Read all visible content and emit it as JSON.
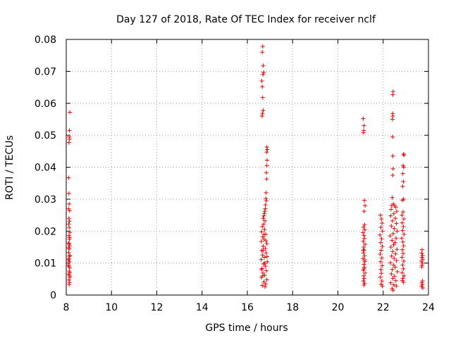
{
  "chart_data": {
    "type": "scatter",
    "title": "Day 127 of 2018, Rate Of TEC Index for receiver nclf",
    "xlabel": "GPS time / hours",
    "ylabel": "ROTI / TECUs",
    "xlim": [
      8,
      24
    ],
    "ylim": [
      0,
      0.08
    ],
    "grid": true,
    "marker": "+",
    "marker_color": "#ff0000",
    "x_ticks": [
      {
        "value": 8,
        "label": "8"
      },
      {
        "value": 10,
        "label": "10"
      },
      {
        "value": 12,
        "label": "12"
      },
      {
        "value": 14,
        "label": "14"
      },
      {
        "value": 16,
        "label": "16"
      },
      {
        "value": 18,
        "label": "18"
      },
      {
        "value": 20,
        "label": "20"
      },
      {
        "value": 22,
        "label": "22"
      },
      {
        "value": 24,
        "label": "24"
      }
    ],
    "y_ticks": [
      {
        "value": 0,
        "label": "0"
      },
      {
        "value": 0.01,
        "label": "0.01"
      },
      {
        "value": 0.02,
        "label": "0.02"
      },
      {
        "value": 0.03,
        "label": "0.03"
      },
      {
        "value": 0.04,
        "label": "0.04"
      },
      {
        "value": 0.05,
        "label": "0.05"
      },
      {
        "value": 0.06,
        "label": "0.06"
      },
      {
        "value": 0.07,
        "label": "0.07"
      },
      {
        "value": 0.08,
        "label": "0.08"
      }
    ],
    "series": [
      {
        "name": "ROTI",
        "points": [
          [
            8.16,
            0.0572
          ],
          [
            8.14,
            0.0515
          ],
          [
            8.13,
            0.0495
          ],
          [
            8.15,
            0.0488
          ],
          [
            8.12,
            0.0477
          ],
          [
            8.11,
            0.0367
          ],
          [
            8.12,
            0.0318
          ],
          [
            8.13,
            0.0285
          ],
          [
            8.1,
            0.027
          ],
          [
            8.15,
            0.0264
          ],
          [
            8.12,
            0.024
          ],
          [
            8.14,
            0.0231
          ],
          [
            8.11,
            0.0222
          ],
          [
            8.13,
            0.0211
          ],
          [
            8.16,
            0.0196
          ],
          [
            8.12,
            0.0186
          ],
          [
            8.14,
            0.0175
          ],
          [
            8.1,
            0.0163
          ],
          [
            8.15,
            0.0154
          ],
          [
            8.13,
            0.0144
          ],
          [
            8.11,
            0.0133
          ],
          [
            8.16,
            0.0124
          ],
          [
            8.12,
            0.0113
          ],
          [
            8.14,
            0.0104
          ],
          [
            8.1,
            0.0094
          ],
          [
            8.15,
            0.0085
          ],
          [
            8.13,
            0.0075
          ],
          [
            8.11,
            0.0065
          ],
          [
            8.16,
            0.0056
          ],
          [
            8.12,
            0.0047
          ],
          [
            8.14,
            0.0039
          ],
          [
            8.13,
            0.0033
          ],
          [
            8.15,
            0.018
          ],
          [
            8.11,
            0.0148
          ],
          [
            8.14,
            0.0121
          ],
          [
            8.12,
            0.009
          ],
          [
            8.16,
            0.007
          ],
          [
            8.1,
            0.011
          ],
          [
            8.13,
            0.016
          ],
          [
            8.15,
            0.006
          ],
          [
            16.68,
            0.0778
          ],
          [
            16.66,
            0.076
          ],
          [
            16.7,
            0.0718
          ],
          [
            16.72,
            0.0697
          ],
          [
            16.69,
            0.069
          ],
          [
            16.64,
            0.067
          ],
          [
            16.66,
            0.0652
          ],
          [
            16.68,
            0.0618
          ],
          [
            16.7,
            0.0578
          ],
          [
            16.67,
            0.0568
          ],
          [
            16.65,
            0.056
          ],
          [
            16.86,
            0.0463
          ],
          [
            16.88,
            0.0455
          ],
          [
            16.85,
            0.0447
          ],
          [
            16.87,
            0.0422
          ],
          [
            16.86,
            0.0405
          ],
          [
            16.84,
            0.0383
          ],
          [
            16.85,
            0.0363
          ],
          [
            16.83,
            0.032
          ],
          [
            16.82,
            0.0302
          ],
          [
            16.84,
            0.0295
          ],
          [
            16.8,
            0.0282
          ],
          [
            16.79,
            0.027
          ],
          [
            16.77,
            0.0262
          ],
          [
            16.75,
            0.0255
          ],
          [
            16.73,
            0.0248
          ],
          [
            16.7,
            0.024
          ],
          [
            16.78,
            0.0232
          ],
          [
            16.72,
            0.0222
          ],
          [
            16.66,
            0.0214
          ],
          [
            16.76,
            0.0205
          ],
          [
            16.63,
            0.0198
          ],
          [
            16.81,
            0.019
          ],
          [
            16.68,
            0.0182
          ],
          [
            16.74,
            0.0175
          ],
          [
            16.62,
            0.0168
          ],
          [
            16.86,
            0.0161
          ],
          [
            16.7,
            0.0153
          ],
          [
            16.79,
            0.0146
          ],
          [
            16.64,
            0.0139
          ],
          [
            16.83,
            0.0132
          ],
          [
            16.67,
            0.0125
          ],
          [
            16.75,
            0.0118
          ],
          [
            16.61,
            0.0111
          ],
          [
            16.88,
            0.0104
          ],
          [
            16.72,
            0.0097
          ],
          [
            16.8,
            0.009
          ],
          [
            16.65,
            0.0083
          ],
          [
            16.84,
            0.0076
          ],
          [
            16.69,
            0.0069
          ],
          [
            16.77,
            0.0062
          ],
          [
            16.62,
            0.0055
          ],
          [
            16.86,
            0.0048
          ],
          [
            16.73,
            0.0041
          ],
          [
            16.81,
            0.0035
          ],
          [
            16.66,
            0.003
          ],
          [
            16.78,
            0.0026
          ],
          [
            16.7,
            0.014
          ],
          [
            16.76,
            0.01
          ],
          [
            16.82,
            0.017
          ],
          [
            16.63,
            0.008
          ],
          [
            16.87,
            0.012
          ],
          [
            16.68,
            0.006
          ],
          [
            16.74,
            0.019
          ],
          [
            21.12,
            0.0552
          ],
          [
            21.15,
            0.053
          ],
          [
            21.14,
            0.0515
          ],
          [
            21.13,
            0.0508
          ],
          [
            21.17,
            0.0296
          ],
          [
            21.2,
            0.028
          ],
          [
            21.16,
            0.0262
          ],
          [
            21.18,
            0.022
          ],
          [
            21.13,
            0.0212
          ],
          [
            21.19,
            0.0204
          ],
          [
            21.11,
            0.0195
          ],
          [
            21.15,
            0.0186
          ],
          [
            21.17,
            0.0177
          ],
          [
            21.12,
            0.0168
          ],
          [
            21.2,
            0.0159
          ],
          [
            21.14,
            0.015
          ],
          [
            21.16,
            0.0141
          ],
          [
            21.13,
            0.0132
          ],
          [
            21.18,
            0.0123
          ],
          [
            21.11,
            0.0114
          ],
          [
            21.19,
            0.0105
          ],
          [
            21.15,
            0.0096
          ],
          [
            21.17,
            0.0087
          ],
          [
            21.12,
            0.0078
          ],
          [
            21.2,
            0.0069
          ],
          [
            21.14,
            0.006
          ],
          [
            21.16,
            0.0052
          ],
          [
            21.13,
            0.0044
          ],
          [
            21.18,
            0.0037
          ],
          [
            21.15,
            0.0031
          ],
          [
            21.12,
            0.014
          ],
          [
            21.19,
            0.011
          ],
          [
            21.16,
            0.0082
          ],
          [
            21.88,
            0.025
          ],
          [
            21.92,
            0.0238
          ],
          [
            21.95,
            0.0225
          ],
          [
            21.9,
            0.0212
          ],
          [
            21.97,
            0.02
          ],
          [
            21.86,
            0.0188
          ],
          [
            21.93,
            0.0176
          ],
          [
            21.89,
            0.0164
          ],
          [
            21.96,
            0.0152
          ],
          [
            21.91,
            0.014
          ],
          [
            21.87,
            0.0128
          ],
          [
            21.94,
            0.0116
          ],
          [
            21.89,
            0.0104
          ],
          [
            21.95,
            0.0092
          ],
          [
            21.9,
            0.008
          ],
          [
            21.92,
            0.0068
          ],
          [
            21.88,
            0.0056
          ],
          [
            21.94,
            0.0044
          ],
          [
            21.91,
            0.0034
          ],
          [
            21.96,
            0.0028
          ],
          [
            22.44,
            0.0637
          ],
          [
            22.43,
            0.0627
          ],
          [
            22.42,
            0.0568
          ],
          [
            22.43,
            0.056
          ],
          [
            22.41,
            0.055
          ],
          [
            22.42,
            0.0495
          ],
          [
            22.43,
            0.0435
          ],
          [
            22.44,
            0.0395
          ],
          [
            22.42,
            0.0375
          ],
          [
            22.4,
            0.0305
          ],
          [
            22.45,
            0.0285
          ],
          [
            22.38,
            0.028
          ],
          [
            22.5,
            0.028
          ],
          [
            22.56,
            0.0275
          ],
          [
            22.35,
            0.0268
          ],
          [
            22.6,
            0.0262
          ],
          [
            22.47,
            0.0255
          ],
          [
            22.33,
            0.0248
          ],
          [
            22.54,
            0.024
          ],
          [
            22.41,
            0.0232
          ],
          [
            22.58,
            0.0224
          ],
          [
            22.36,
            0.0216
          ],
          [
            22.49,
            0.0208
          ],
          [
            22.62,
            0.02
          ],
          [
            22.44,
            0.0192
          ],
          [
            22.31,
            0.0185
          ],
          [
            22.57,
            0.0178
          ],
          [
            22.39,
            0.0171
          ],
          [
            22.52,
            0.0164
          ],
          [
            22.46,
            0.0157
          ],
          [
            22.34,
            0.015
          ],
          [
            22.61,
            0.0143
          ],
          [
            22.42,
            0.0136
          ],
          [
            22.55,
            0.0129
          ],
          [
            22.37,
            0.0122
          ],
          [
            22.48,
            0.0115
          ],
          [
            22.59,
            0.0108
          ],
          [
            22.32,
            0.0101
          ],
          [
            22.45,
            0.0094
          ],
          [
            22.53,
            0.0087
          ],
          [
            22.4,
            0.008
          ],
          [
            22.63,
            0.0073
          ],
          [
            22.36,
            0.0066
          ],
          [
            22.5,
            0.0059
          ],
          [
            22.43,
            0.0052
          ],
          [
            22.56,
            0.0045
          ],
          [
            22.33,
            0.0038
          ],
          [
            22.47,
            0.0032
          ],
          [
            22.58,
            0.0028
          ],
          [
            22.39,
            0.002
          ],
          [
            22.44,
            0.0015
          ],
          [
            22.9,
            0.0441
          ],
          [
            22.92,
            0.0438
          ],
          [
            22.88,
            0.0405
          ],
          [
            22.91,
            0.04
          ],
          [
            22.87,
            0.038
          ],
          [
            22.89,
            0.0355
          ],
          [
            22.86,
            0.034
          ],
          [
            22.9,
            0.03
          ],
          [
            22.85,
            0.0297
          ],
          [
            22.88,
            0.026
          ],
          [
            22.83,
            0.025
          ],
          [
            22.91,
            0.0238
          ],
          [
            22.84,
            0.0226
          ],
          [
            22.89,
            0.0214
          ],
          [
            22.86,
            0.0202
          ],
          [
            22.92,
            0.019
          ],
          [
            22.82,
            0.0178
          ],
          [
            22.87,
            0.0166
          ],
          [
            22.9,
            0.0154
          ],
          [
            22.85,
            0.0142
          ],
          [
            22.88,
            0.013
          ],
          [
            22.83,
            0.0118
          ],
          [
            22.91,
            0.0106
          ],
          [
            22.86,
            0.0094
          ],
          [
            22.89,
            0.0082
          ],
          [
            22.84,
            0.007
          ],
          [
            22.92,
            0.006
          ],
          [
            22.87,
            0.0052
          ],
          [
            22.85,
            0.0045
          ],
          [
            22.9,
            0.004
          ],
          [
            23.72,
            0.0142
          ],
          [
            23.7,
            0.0131
          ],
          [
            23.74,
            0.0124
          ],
          [
            23.71,
            0.0118
          ],
          [
            23.75,
            0.0112
          ],
          [
            23.69,
            0.0106
          ],
          [
            23.73,
            0.01
          ],
          [
            23.72,
            0.0094
          ],
          [
            23.7,
            0.0088
          ],
          [
            23.74,
            0.0044
          ],
          [
            23.71,
            0.0038
          ],
          [
            23.73,
            0.0032
          ],
          [
            23.7,
            0.0027
          ],
          [
            23.75,
            0.0022
          ]
        ]
      }
    ]
  }
}
